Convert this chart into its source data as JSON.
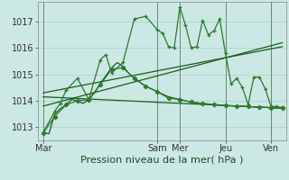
{
  "bg_color": "#cce8e4",
  "grid_color": "#aad4cc",
  "line_color1": "#1a5c1a",
  "line_color2": "#2d7a2d",
  "xlabel": "Pression niveau de la mer( hPa )",
  "xlabel_fontsize": 8,
  "tick_fontsize": 7,
  "ylim": [
    1012.5,
    1017.75
  ],
  "yticks": [
    1013,
    1014,
    1015,
    1016,
    1017
  ],
  "x_day_labels": [
    "Mar",
    "Sam",
    "Mer",
    "Jeu",
    "Ven"
  ],
  "x_day_positions": [
    0,
    60,
    72,
    96,
    120
  ],
  "xlim": [
    -3,
    128
  ],
  "series1_x": [
    0,
    3,
    6,
    9,
    12,
    15,
    18,
    21,
    24,
    27,
    30,
    33,
    36,
    39,
    42,
    45,
    48,
    51,
    54,
    57,
    60,
    63,
    66,
    69,
    72,
    75,
    78,
    81,
    84,
    87,
    90,
    93,
    96,
    99,
    102,
    105,
    108,
    111,
    114,
    117,
    120,
    123,
    126
  ],
  "series1_y": [
    1012.8,
    1012.75,
    1013.5,
    1013.7,
    1013.85,
    1014.05,
    1014.0,
    1013.9,
    1014.05,
    1014.3,
    1014.65,
    1014.95,
    1015.25,
    1015.45,
    1015.3,
    1015.05,
    1014.85,
    1014.7,
    1014.55,
    1014.45,
    1014.35,
    1014.25,
    1014.15,
    1014.1,
    1014.05,
    1014.0,
    1013.95,
    1013.92,
    1013.9,
    1013.88,
    1013.86,
    1013.84,
    1013.82,
    1013.81,
    1013.8,
    1013.79,
    1013.78,
    1013.77,
    1013.76,
    1013.75,
    1013.74,
    1013.73,
    1013.72
  ],
  "series2_x": [
    0,
    6,
    12,
    18,
    24,
    30,
    36,
    42,
    48,
    54,
    60,
    66,
    72,
    78,
    84,
    90,
    96,
    102,
    108,
    114,
    120,
    126
  ],
  "series2_y": [
    1012.78,
    1013.4,
    1013.85,
    1014.0,
    1014.05,
    1014.6,
    1015.2,
    1015.25,
    1014.85,
    1014.55,
    1014.35,
    1014.1,
    1014.05,
    1013.95,
    1013.9,
    1013.85,
    1013.82,
    1013.8,
    1013.78,
    1013.76,
    1013.74,
    1013.72
  ],
  "series3_x": [
    0,
    6,
    9,
    12,
    18,
    24,
    30,
    33,
    36,
    42,
    48,
    54,
    60,
    63,
    66,
    69,
    72,
    75,
    78,
    81,
    84,
    87,
    90,
    93,
    96,
    99,
    102,
    105,
    108,
    111,
    114,
    117,
    120,
    123,
    126
  ],
  "series3_y": [
    1012.8,
    1013.6,
    1013.9,
    1014.4,
    1014.85,
    1014.05,
    1015.55,
    1015.75,
    1015.05,
    1015.45,
    1017.1,
    1017.2,
    1016.7,
    1016.55,
    1016.05,
    1016.0,
    1017.55,
    1016.85,
    1016.0,
    1016.05,
    1017.05,
    1016.5,
    1016.65,
    1017.1,
    1015.8,
    1014.65,
    1014.85,
    1014.5,
    1013.85,
    1014.9,
    1014.9,
    1014.45,
    1013.8,
    1013.78,
    1013.75
  ],
  "trend1_x": [
    0,
    126
  ],
  "trend1_y": [
    1013.8,
    1016.2
  ],
  "trend2_x": [
    0,
    126
  ],
  "trend2_y": [
    1014.15,
    1013.72
  ],
  "trend3_x": [
    0,
    126
  ],
  "trend3_y": [
    1014.3,
    1016.05
  ]
}
